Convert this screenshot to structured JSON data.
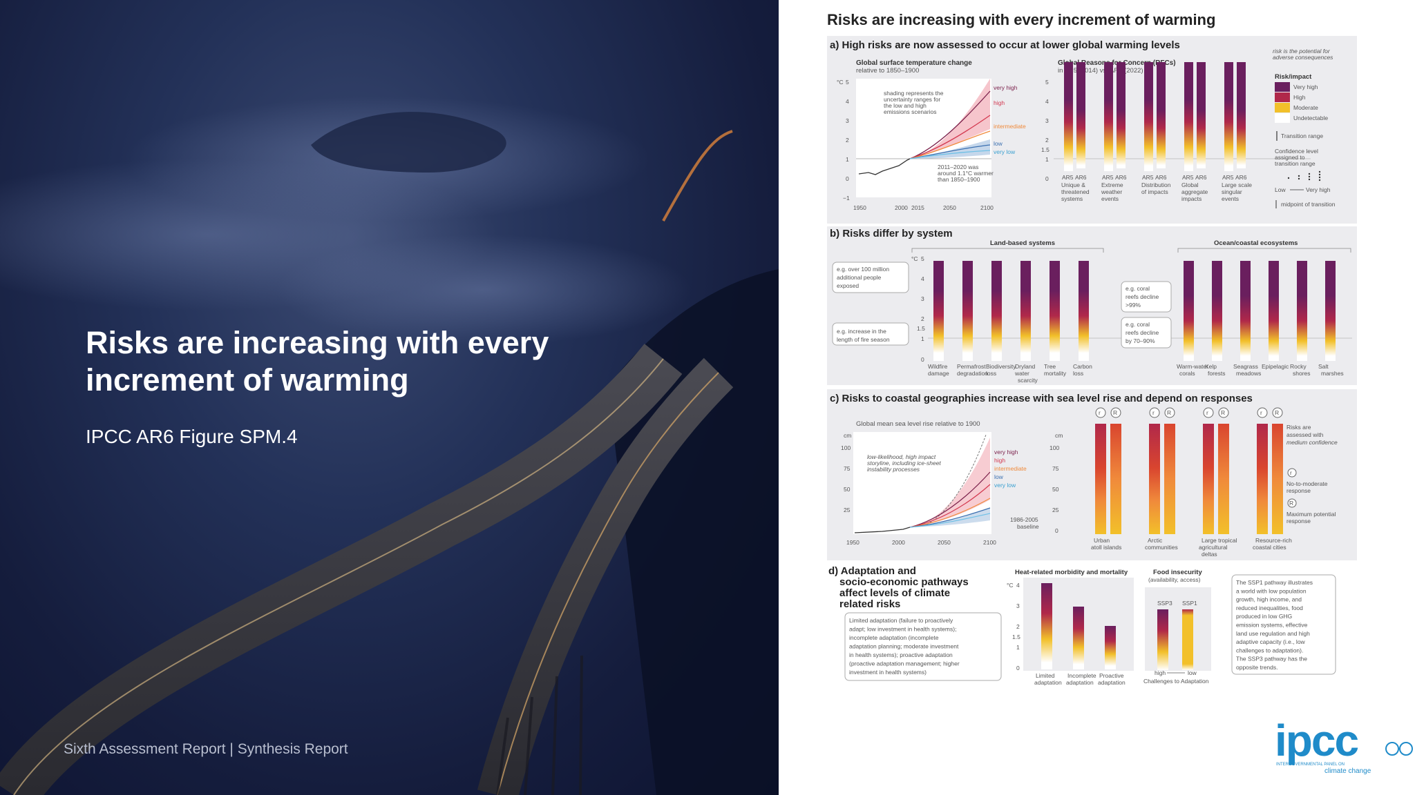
{
  "slide": {
    "title": "Risks are increasing with every increment of warming",
    "subtitle": "IPCC AR6 Figure SPM.4",
    "footer": "Sixth Assessment Report | Synthesis Report"
  },
  "figure": {
    "title": "Risks are increasing with every increment of warming",
    "colors": {
      "very_high": "#6a1f5e",
      "high": "#b0284a",
      "moderate": "#f2c02a",
      "undetectable": "#ffffff",
      "panel_bg": "#ececef"
    },
    "panel_a": {
      "title": "a) High risks are now assessed to occur at lower global warming levels",
      "left_heading": "Global surface temperature change",
      "left_subheading": "relative to 1850–1900",
      "unit": "°C",
      "y_ticks": [
        "5",
        "4",
        "3",
        "2",
        "1",
        "0",
        "−1"
      ],
      "x_ticks": [
        "1950",
        "2000",
        "2015",
        "2050",
        "2100"
      ],
      "shading_note_1": "shading represents the",
      "shading_note_2": "uncertainty ranges for",
      "shading_note_3": "the low and high",
      "shading_note_4": "emissions scenarios",
      "recent_note_1": "2011–2020 was",
      "recent_note_2": "around 1.1°C warmer",
      "recent_note_3": "than 1850–1900",
      "scenarios": [
        "very high",
        "high",
        "intermediate",
        "low",
        "very low"
      ],
      "rfc_heading": "Global Reasons for Concern (RFCs)",
      "rfc_subheading": "in AR5 (2014) vs. AR6 (2022)",
      "rfc_y_ticks": [
        "5",
        "4",
        "3",
        "2",
        "1.5",
        "1",
        "0"
      ],
      "rfc_cols": [
        {
          "ar5": "AR5",
          "ar6": "AR6",
          "l1": "Unique &",
          "l2": "threatened",
          "l3": "systems"
        },
        {
          "ar5": "AR5",
          "ar6": "AR6",
          "l1": "Extreme",
          "l2": "weather",
          "l3": "events"
        },
        {
          "ar5": "AR5",
          "ar6": "AR6",
          "l1": "Distribution",
          "l2": "of impacts",
          "l3": ""
        },
        {
          "ar5": "AR5",
          "ar6": "AR6",
          "l1": "Global",
          "l2": "aggregate",
          "l3": "impacts"
        },
        {
          "ar5": "AR5",
          "ar6": "AR6",
          "l1": "Large scale",
          "l2": "singular",
          "l3": "events"
        }
      ],
      "legend": {
        "note_1": "risk is the potential for",
        "note_2": "adverse consequences",
        "heading": "Risk/impact",
        "very_high": "Very high",
        "high": "High",
        "moderate": "Moderate",
        "undetectable": "Undetectable",
        "transition": "Transition range",
        "confidence_1": "Confidence level",
        "confidence_2": "assigned to",
        "confidence_3": "transition range",
        "low": "Low",
        "very_high_conf": "Very high",
        "midpoint": "midpoint of transition"
      }
    },
    "panel_b": {
      "title": "b) Risks differ by system",
      "land_heading": "Land-based systems",
      "ocean_heading": "Ocean/coastal ecosystems",
      "unit": "°C",
      "y_ticks": [
        "5",
        "4",
        "3",
        "2",
        "1.5",
        "1",
        "0"
      ],
      "callout_land_1": [
        "e.g. over 100 million",
        "additional people",
        "exposed"
      ],
      "callout_land_2": [
        "e.g. increase in the",
        "length of fire season"
      ],
      "callout_ocean_1": [
        "e.g. coral",
        "reefs decline",
        ">99%"
      ],
      "callout_ocean_2": [
        "e.g. coral",
        "reefs decline",
        "by 70–90%"
      ],
      "land": [
        {
          "l1": "Wildfire",
          "l2": "damage",
          "l3": ""
        },
        {
          "l1": "Permafrost",
          "l2": "degradation",
          "l3": ""
        },
        {
          "l1": "Biodiversity",
          "l2": "loss",
          "l3": ""
        },
        {
          "l1": "Dryland",
          "l2": "water",
          "l3": "scarcity"
        },
        {
          "l1": "Tree",
          "l2": "mortality",
          "l3": ""
        },
        {
          "l1": "Carbon",
          "l2": "loss",
          "l3": ""
        }
      ],
      "ocean": [
        {
          "l1": "Warm-water",
          "l2": "corals"
        },
        {
          "l1": "Kelp",
          "l2": "forests"
        },
        {
          "l1": "Seagrass",
          "l2": "meadows"
        },
        {
          "l1": "Epipelagic",
          "l2": ""
        },
        {
          "l1": "Rocky",
          "l2": "shores"
        },
        {
          "l1": "Salt",
          "l2": "marshes"
        }
      ]
    },
    "panel_c": {
      "title": "c) Risks to coastal geographies increase with sea level rise and depend on responses",
      "heading": "Global mean sea level rise relative to 1900",
      "unit": "cm",
      "y_ticks": [
        "100",
        "75",
        "50",
        "25",
        "0"
      ],
      "x_ticks": [
        "1950",
        "2000",
        "2050",
        "2100"
      ],
      "storyline_1": "low-likelihood, high impact",
      "storyline_2": "storyline, including ice-sheet",
      "storyline_3": "instability processes",
      "baseline_1": "1986-2005",
      "baseline_2": "baseline",
      "scenarios": [
        "very high",
        "high",
        "intermediate",
        "low",
        "very low"
      ],
      "r_small": "r",
      "r_large": "R",
      "geographies": [
        {
          "l1": "Urban",
          "l2": "atoll islands",
          "l3": ""
        },
        {
          "l1": "Arctic",
          "l2": "communities",
          "l3": ""
        },
        {
          "l1": "Large tropical",
          "l2": "agricultural",
          "l3": "deltas"
        },
        {
          "l1": "Resource-rich",
          "l2": "coastal cities",
          "l3": ""
        }
      ],
      "note_1": "Risks are",
      "note_2": "assessed with",
      "note_3": "medium confidence",
      "no_to_moderate_1": "No-to-moderate",
      "no_to_moderate_2": "response",
      "max_potential_1": "Maximum potential",
      "max_potential_2": "response"
    },
    "panel_d": {
      "title_1": "d) Adaptation and",
      "title_2": "socio-economic pathways",
      "title_3": "affect levels of climate",
      "title_4": "related risks",
      "box_lines": [
        "Limited adaptation (failure to proactively",
        "adapt; low investment in health systems);",
        "incomplete adaptation (incomplete",
        "adaptation planning; moderate investment",
        "in health systems); proactive adaptation",
        "(proactive adaptation management; higher",
        "investment in health systems)"
      ],
      "heat_heading": "Heat-related morbidity and mortality",
      "unit": "°C",
      "y_ticks": [
        "4",
        "3",
        "2",
        "1.5",
        "1",
        "0"
      ],
      "heat_cols": [
        {
          "l1": "Limited",
          "l2": "adaptation"
        },
        {
          "l1": "Incomplete",
          "l2": "adaptation"
        },
        {
          "l1": "Proactive",
          "l2": "adaptation"
        }
      ],
      "food_heading_1": "Food insecurity",
      "food_heading_2": "(availability, access)",
      "ssp3": "SSP3",
      "ssp1": "SSP1",
      "food_axis_high": "high",
      "food_axis_low": "low",
      "food_axis_label": "Challenges to Adaptation",
      "ssp_note": [
        "The SSP1 pathway illustrates",
        "a world with low population",
        "growth, high income, and",
        "reduced inequalities, food",
        "produced in low GHG",
        "emission systems, effective",
        "land use regulation and high",
        "adaptive capacity (i.e., low",
        "challenges to adaptation).",
        "The SSP3 pathway has the",
        "opposite trends."
      ]
    }
  },
  "logo": {
    "text": "ipcc",
    "line_1": "INTERGOVERNMENTAL PANEL ON",
    "line_2": "climate change"
  }
}
